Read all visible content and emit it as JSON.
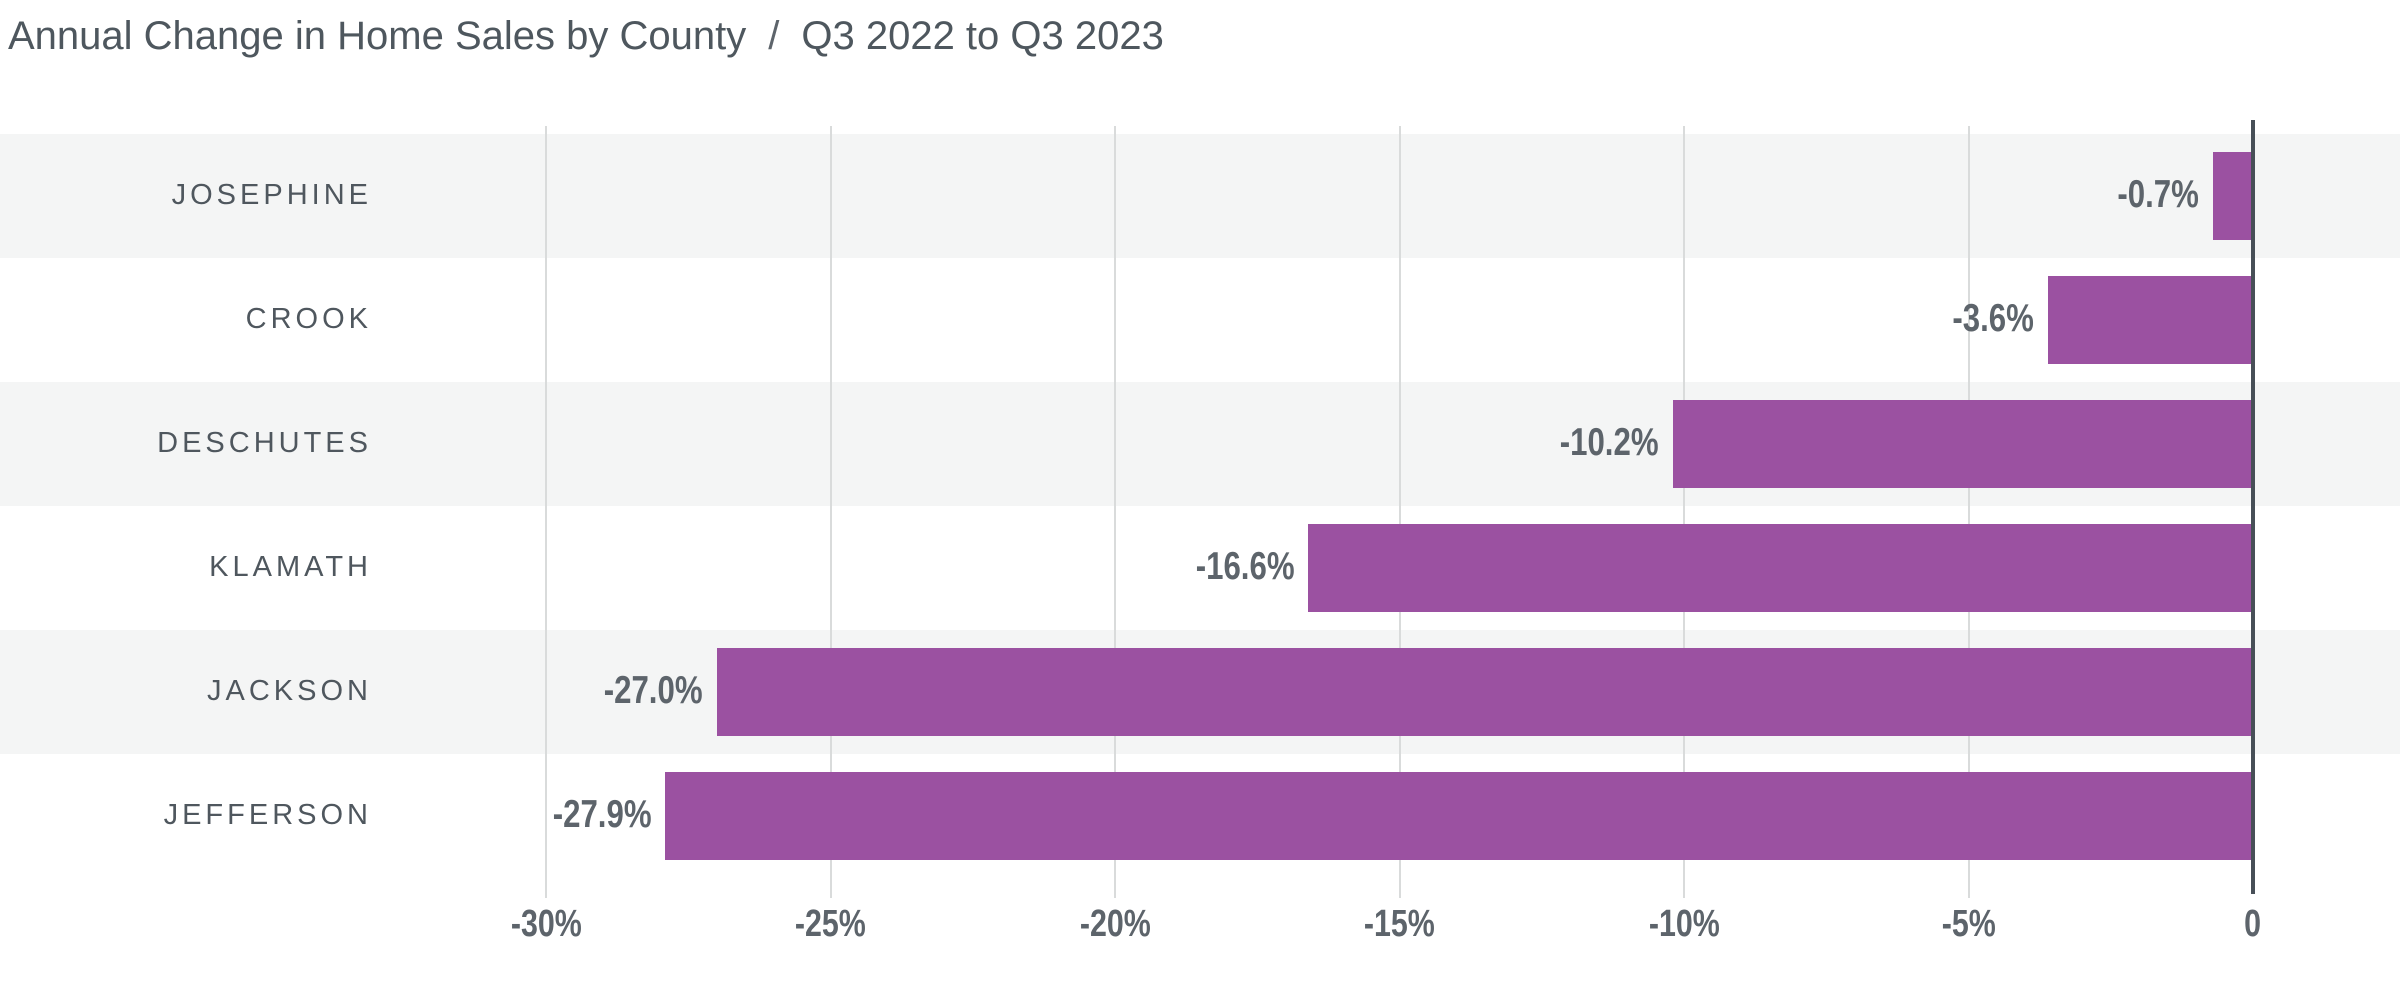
{
  "title": {
    "main": "Annual Change in Home Sales by County",
    "separator": "/",
    "period": "Q3 2022 to Q3 2023"
  },
  "chart_data": {
    "type": "bar",
    "orientation": "horizontal",
    "title": "Annual Change in Home Sales by County / Q3 2022 to Q3 2023",
    "categories": [
      "JOSEPHINE",
      "CROOK",
      "DESCHUTES",
      "KLAMATH",
      "JACKSON",
      "JEFFERSON"
    ],
    "values": [
      -0.7,
      -3.6,
      -10.2,
      -16.6,
      -27.0,
      -27.9
    ],
    "value_labels": [
      "-0.7%",
      "-3.6%",
      "-10.2%",
      "-16.6%",
      "-27.0%",
      "-27.9%"
    ],
    "x_ticks": [
      -30,
      -25,
      -20,
      -15,
      -10,
      -5,
      0
    ],
    "x_tick_labels": [
      "-30%",
      "-25%",
      "-20%",
      "-15%",
      "-10%",
      "-5%",
      "0"
    ],
    "xlim": [
      -30,
      0
    ],
    "xlabel": "",
    "ylabel": "",
    "grid": "vertical-gridlines",
    "legend": "none",
    "row_striping": "alternating, first row shaded",
    "colors": {
      "bar": "#9b51a1",
      "stripe": "#f4f5f5",
      "gridline": "#d9dbdb",
      "zero_axis": "#474f57",
      "title_text": "#4e575e",
      "category_text": "#4f575e",
      "value_text": "#5d646b",
      "tick_text": "#5d646b",
      "background": "#ffffff"
    }
  }
}
